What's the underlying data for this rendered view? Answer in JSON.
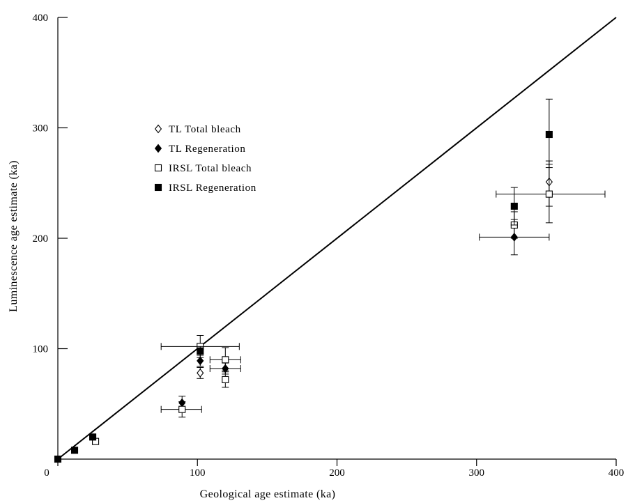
{
  "chart_data": {
    "type": "scatter",
    "title": "",
    "xlabel": "Geological age estimate (ka)",
    "ylabel": "Luminescence age estimate (ka)",
    "xlim": [
      0,
      400
    ],
    "ylim": [
      0,
      400
    ],
    "xticks": [
      0,
      100,
      200,
      300,
      400
    ],
    "yticks": [
      100,
      200,
      300,
      400
    ],
    "grid": false,
    "legend_position": "upper-left",
    "reference_line": {
      "label": "",
      "x": [
        0,
        400
      ],
      "y": [
        0,
        400
      ]
    },
    "series": [
      {
        "name": "TL Total bleach",
        "marker": "diamond-open",
        "points": [
          {
            "x": 102,
            "y": 78,
            "ylow": 73,
            "yhigh": 83
          },
          {
            "x": 352,
            "y": 251,
            "ylow": 229,
            "yhigh": 270
          }
        ]
      },
      {
        "name": "TL Regeneration",
        "marker": "diamond-filled",
        "points": [
          {
            "x": 89,
            "y": 51,
            "ylow": 46,
            "yhigh": 57
          },
          {
            "x": 102,
            "y": 89,
            "ylow": 84,
            "yhigh": 95
          },
          {
            "x": 120,
            "y": 82,
            "ylow": 77,
            "yhigh": 87,
            "xlow": 109,
            "xhigh": 131
          },
          {
            "x": 327,
            "y": 201,
            "ylow": 185,
            "yhigh": 217,
            "xlow": 302,
            "xhigh": 352
          }
        ]
      },
      {
        "name": "IRSL Total bleach",
        "marker": "square-open",
        "points": [
          {
            "x": 27,
            "y": 16
          },
          {
            "x": 89,
            "y": 45,
            "ylow": 38,
            "yhigh": 52,
            "xlow": 74,
            "xhigh": 103
          },
          {
            "x": 102,
            "y": 102,
            "ylow": 92,
            "yhigh": 112,
            "xlow": 74,
            "xhigh": 130
          },
          {
            "x": 120,
            "y": 90,
            "ylow": 80,
            "yhigh": 101,
            "xlow": 109,
            "xhigh": 131
          },
          {
            "x": 120,
            "y": 72,
            "ylow": 65,
            "yhigh": 79
          },
          {
            "x": 327,
            "y": 212,
            "ylow": 200,
            "yhigh": 224
          },
          {
            "x": 352,
            "y": 240,
            "ylow": 214,
            "yhigh": 267,
            "xlow": 314,
            "xhigh": 392
          }
        ]
      },
      {
        "name": "IRSL Regeneration",
        "marker": "square-filled",
        "points": [
          {
            "x": 0,
            "y": 0
          },
          {
            "x": 12,
            "y": 8
          },
          {
            "x": 25,
            "y": 20
          },
          {
            "x": 102,
            "y": 98,
            "ylow": 94,
            "yhigh": 102
          },
          {
            "x": 327,
            "y": 229,
            "ylow": 212,
            "yhigh": 246
          },
          {
            "x": 352,
            "y": 294,
            "ylow": 264,
            "yhigh": 326
          }
        ]
      }
    ]
  }
}
